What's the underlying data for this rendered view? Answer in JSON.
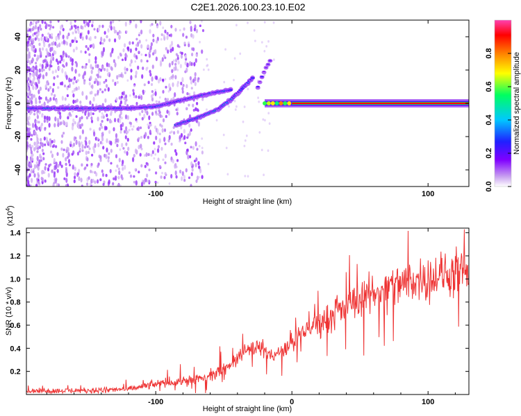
{
  "title": "C2E1.2026.100.23.10.E02",
  "colors": {
    "snr_line": "#ee3333",
    "ridge": "#ff0000"
  },
  "chart_data": [
    {
      "type": "heatmap",
      "name": "spectrogram",
      "xlabel": "Height of straight line (km)",
      "ylabel": "Frequency (Hz)",
      "xlim": [
        -195,
        130
      ],
      "ylim": [
        -50,
        50
      ],
      "xticks": [
        -100,
        0,
        100
      ],
      "xtick_labels": [
        "-100",
        "",
        "100"
      ],
      "yticks": [
        -40,
        -20,
        0,
        20,
        40
      ],
      "ytick_labels": [
        "-40",
        "-20",
        "0",
        "20",
        "40"
      ],
      "colorbar": {
        "label": "Normalized spectral amplitude",
        "range": [
          0,
          1
        ],
        "ticks": [
          0.0,
          0.2,
          0.4,
          0.6,
          0.8
        ],
        "tick_labels": [
          "0.0",
          "0.2",
          "0.4",
          "0.6",
          "0.8"
        ],
        "colormap": [
          "#ffffff",
          "#c8a0f0",
          "#8000ff",
          "#2020ff",
          "#00c8ff",
          "#00ff60",
          "#ffff00",
          "#ff8000",
          "#ff0000",
          "#ff40b0"
        ]
      },
      "features": [
        {
          "label": "main band",
          "points": [
            [
              -195,
              -3
            ],
            [
              -160,
              -3
            ],
            [
              -140,
              -3
            ],
            [
              -120,
              -3
            ],
            [
              -100,
              -2
            ],
            [
              -80,
              2
            ],
            [
              -60,
              6
            ],
            [
              -45,
              8
            ]
          ]
        },
        {
          "label": "lower branch",
          "points": [
            [
              -85,
              -13
            ],
            [
              -70,
              -9
            ],
            [
              -55,
              -4
            ],
            [
              -45,
              2
            ],
            [
              -35,
              10
            ],
            [
              -28,
              16
            ]
          ]
        },
        {
          "label": "upper fragment",
          "points": [
            [
              -25,
              10
            ],
            [
              -20,
              20
            ],
            [
              -15,
              27
            ]
          ]
        },
        {
          "label": "carrier line",
          "points": [
            [
              -20,
              0
            ],
            [
              0,
              0
            ],
            [
              130,
              0
            ]
          ]
        }
      ]
    },
    {
      "type": "line",
      "name": "snr",
      "xlabel": "Height of straight line (km)",
      "ylabel": "SNR (10 * v/v)",
      "y_multiplier": "(x10",
      "y_multiplier_exp": "4",
      "y_multiplier_close": ")",
      "xlim": [
        -195,
        130
      ],
      "ylim": [
        0,
        14400
      ],
      "xticks": [
        -100,
        0,
        100
      ],
      "xtick_labels": [
        "-100",
        "0",
        "100"
      ],
      "yticks": [
        2000,
        4000,
        6000,
        8000,
        10000,
        12000,
        14000
      ],
      "ytick_labels": [
        "0.2",
        "0.4",
        "0.6",
        "0.8",
        "1.0",
        "1.2",
        "1.4"
      ],
      "trend": {
        "x": [
          -195,
          -150,
          -120,
          -100,
          -80,
          -60,
          -45,
          -35,
          -25,
          -15,
          -5,
          5,
          20,
          35,
          50,
          65,
          80,
          95,
          110,
          130
        ],
        "y": [
          300,
          350,
          450,
          900,
          1200,
          1500,
          2600,
          3800,
          4200,
          3300,
          3800,
          5000,
          6300,
          7200,
          8300,
          9000,
          9600,
          10000,
          10300,
          10500
        ]
      }
    }
  ]
}
